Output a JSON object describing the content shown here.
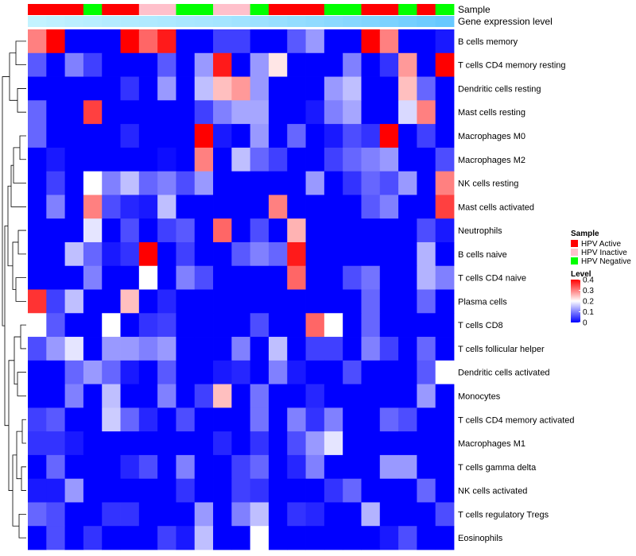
{
  "chart_data": {
    "type": "heatmap",
    "title": "",
    "annotation_rows": [
      {
        "name": "Sample"
      },
      {
        "name": "Gene expression level"
      }
    ],
    "sample_groups": [
      "A",
      "A",
      "A",
      "N",
      "A",
      "A",
      "I",
      "I",
      "N",
      "N",
      "I",
      "I",
      "N",
      "A",
      "A",
      "A",
      "N",
      "N",
      "A",
      "A",
      "N",
      "A",
      "N"
    ],
    "expression_level": [
      0.05,
      0.08,
      0.12,
      0.15,
      0.18,
      0.2,
      0.22,
      0.25,
      0.28,
      0.3,
      0.33,
      0.36,
      0.4,
      0.44,
      0.48,
      0.52,
      0.56,
      0.6,
      0.65,
      0.7,
      0.76,
      0.82,
      0.88
    ],
    "rows": [
      "B cells memory",
      "T cells CD4 memory resting",
      "Dendritic cells resting",
      "Mast cells resting",
      "Macrophages M0",
      "Macrophages M2",
      "NK cells resting",
      "Mast cells activated",
      "Neutrophils",
      "B cells naive",
      "T cells CD4 naive",
      "Plasma cells",
      "T cells CD8",
      "T cells follicular helper",
      "Dendritic cells activated",
      "Monocytes",
      "T cells CD4 memory activated",
      "Macrophages M1",
      "T cells gamma delta",
      "NK cells activated",
      "T cells regulatory  Tregs",
      "Eosinophils"
    ],
    "values": [
      [
        0.3,
        0.4,
        0.0,
        0.0,
        0.0,
        0.4,
        0.32,
        0.38,
        0.0,
        0.0,
        0.05,
        0.05,
        0.0,
        0.0,
        0.07,
        0.12,
        0.0,
        0.0,
        0.4,
        0.3,
        0.0,
        0.0,
        0.02
      ],
      [
        0.07,
        0.0,
        0.1,
        0.05,
        0.0,
        0.0,
        0.0,
        0.07,
        0.0,
        0.12,
        0.38,
        0.0,
        0.12,
        0.22,
        0.0,
        0.0,
        0.0,
        0.1,
        0.0,
        0.04,
        0.28,
        0.0,
        0.4
      ],
      [
        0.0,
        0.0,
        0.0,
        0.0,
        0.0,
        0.04,
        0.0,
        0.12,
        0.0,
        0.15,
        0.25,
        0.28,
        0.12,
        0.0,
        0.0,
        0.0,
        0.12,
        0.15,
        0.0,
        0.0,
        0.25,
        0.08,
        0.0
      ],
      [
        0.08,
        0.0,
        0.0,
        0.35,
        0.0,
        0.0,
        0.0,
        0.0,
        0.0,
        0.05,
        0.1,
        0.13,
        0.13,
        0.0,
        0.0,
        0.02,
        0.1,
        0.13,
        0.0,
        0.0,
        0.17,
        0.3,
        0.0
      ],
      [
        0.08,
        0.0,
        0.0,
        0.0,
        0.0,
        0.03,
        0.0,
        0.0,
        0.0,
        0.4,
        0.02,
        0.0,
        0.12,
        0.0,
        0.08,
        0.0,
        0.02,
        0.06,
        0.04,
        0.4,
        0.0,
        0.05,
        0.0
      ],
      [
        0.0,
        0.02,
        0.0,
        0.0,
        0.0,
        0.0,
        0.0,
        0.01,
        0.0,
        0.3,
        0.0,
        0.15,
        0.08,
        0.05,
        0.0,
        0.0,
        0.05,
        0.08,
        0.1,
        0.12,
        0.0,
        0.0,
        0.06
      ],
      [
        0.0,
        0.05,
        0.0,
        0.2,
        0.1,
        0.15,
        0.08,
        0.1,
        0.06,
        0.12,
        0.0,
        0.0,
        0.0,
        0.0,
        0.0,
        0.12,
        0.0,
        0.04,
        0.08,
        0.06,
        0.12,
        0.0,
        0.3
      ],
      [
        0.0,
        0.1,
        0.0,
        0.3,
        0.06,
        0.03,
        0.02,
        0.15,
        0.0,
        0.0,
        0.0,
        0.0,
        0.0,
        0.3,
        0.0,
        0.0,
        0.0,
        0.0,
        0.07,
        0.1,
        0.0,
        0.0,
        0.35
      ],
      [
        0.0,
        0.0,
        0.0,
        0.18,
        0.0,
        0.06,
        0.0,
        0.05,
        0.07,
        0.0,
        0.32,
        0.0,
        0.06,
        0.0,
        0.26,
        0.0,
        0.0,
        0.0,
        0.0,
        0.0,
        0.0,
        0.06,
        0.02
      ],
      [
        0.0,
        0.0,
        0.15,
        0.08,
        0.02,
        0.04,
        0.4,
        0.0,
        0.05,
        0.0,
        0.0,
        0.07,
        0.1,
        0.08,
        0.38,
        0.0,
        0.0,
        0.0,
        0.0,
        0.0,
        0.0,
        0.14,
        0.0
      ],
      [
        0.0,
        0.0,
        0.0,
        0.1,
        0.0,
        0.0,
        0.2,
        0.0,
        0.1,
        0.06,
        0.0,
        0.0,
        0.0,
        0.0,
        0.32,
        0.0,
        0.0,
        0.06,
        0.09,
        0.0,
        0.0,
        0.14,
        0.1
      ],
      [
        0.36,
        0.05,
        0.15,
        0.0,
        0.0,
        0.25,
        0.0,
        0.03,
        0.0,
        0.0,
        0.0,
        0.0,
        0.0,
        0.0,
        0.0,
        0.0,
        0.0,
        0.0,
        0.08,
        0.0,
        0.0,
        0.08,
        0.0
      ],
      [
        0.2,
        0.07,
        0.0,
        0.0,
        0.2,
        0.0,
        0.04,
        0.05,
        0.0,
        0.0,
        0.0,
        0.0,
        0.06,
        0.0,
        0.0,
        0.32,
        0.2,
        0.0,
        0.08,
        0.0,
        0.0,
        0.0,
        0.0
      ],
      [
        0.06,
        0.12,
        0.18,
        0.0,
        0.12,
        0.12,
        0.1,
        0.12,
        0.0,
        0.0,
        0.0,
        0.1,
        0.0,
        0.15,
        0.0,
        0.05,
        0.05,
        0.0,
        0.1,
        0.05,
        0.0,
        0.08,
        0.0
      ],
      [
        0.0,
        0.0,
        0.08,
        0.12,
        0.08,
        0.02,
        0.0,
        0.07,
        0.0,
        0.0,
        0.02,
        0.03,
        0.0,
        0.1,
        0.02,
        0.0,
        0.0,
        0.06,
        0.0,
        0.0,
        0.0,
        0.07,
        0.2
      ],
      [
        0.0,
        0.0,
        0.1,
        0.0,
        0.15,
        0.0,
        0.0,
        0.1,
        0.0,
        0.05,
        0.25,
        0.0,
        0.09,
        0.0,
        0.0,
        0.03,
        0.0,
        0.0,
        0.0,
        0.0,
        0.0,
        0.12,
        0.0
      ],
      [
        0.05,
        0.07,
        0.0,
        0.0,
        0.16,
        0.08,
        0.03,
        0.0,
        0.06,
        0.0,
        0.0,
        0.0,
        0.09,
        0.0,
        0.1,
        0.04,
        0.1,
        0.0,
        0.0,
        0.08,
        0.06,
        0.0,
        0.0
      ],
      [
        0.04,
        0.04,
        0.02,
        0.0,
        0.0,
        0.0,
        0.0,
        0.0,
        0.0,
        0.0,
        0.03,
        0.0,
        0.04,
        0.0,
        0.06,
        0.12,
        0.18,
        0.0,
        0.0,
        0.0,
        0.0,
        0.0,
        0.0
      ],
      [
        0.0,
        0.08,
        0.0,
        0.0,
        0.0,
        0.03,
        0.06,
        0.0,
        0.1,
        0.0,
        0.0,
        0.05,
        0.08,
        0.0,
        0.03,
        0.1,
        0.0,
        0.0,
        0.0,
        0.12,
        0.12,
        0.0,
        0.0
      ],
      [
        0.02,
        0.02,
        0.12,
        0.0,
        0.0,
        0.0,
        0.0,
        0.0,
        0.04,
        0.0,
        0.0,
        0.05,
        0.04,
        0.0,
        0.0,
        0.0,
        0.04,
        0.08,
        0.0,
        0.0,
        0.0,
        0.08,
        0.0
      ],
      [
        0.08,
        0.06,
        0.0,
        0.0,
        0.04,
        0.04,
        0.0,
        0.0,
        0.0,
        0.12,
        0.0,
        0.1,
        0.15,
        0.0,
        0.04,
        0.03,
        0.0,
        0.0,
        0.14,
        0.0,
        0.0,
        0.0,
        0.06
      ],
      [
        0.0,
        0.06,
        0.0,
        0.04,
        0.0,
        0.0,
        0.0,
        0.05,
        0.02,
        0.15,
        0.0,
        0.0,
        0.2,
        0.0,
        0.0,
        0.0,
        0.0,
        0.0,
        0.0,
        0.02,
        0.06,
        0.0,
        0.0
      ]
    ],
    "color_scale": {
      "min": 0,
      "max": 0.4,
      "low": "#0000ff",
      "mid": "#ffffff",
      "high": "#ff0000"
    },
    "legend": {
      "sample": {
        "title": "Sample",
        "items": [
          {
            "label": "HPV Active",
            "color": "#ff0000"
          },
          {
            "label": "HPV Inactive",
            "color": "#ffc0cb"
          },
          {
            "label": "HPV Negative",
            "color": "#00ff00"
          }
        ]
      },
      "level": {
        "title": "Level",
        "ticks": [
          "0.4",
          "0.3",
          "0.2",
          "0.1",
          "0"
        ],
        "tick_values": [
          0.4,
          0.3,
          0.2,
          0.1,
          0
        ]
      },
      "position": "right"
    },
    "dendrogram": "rows"
  }
}
